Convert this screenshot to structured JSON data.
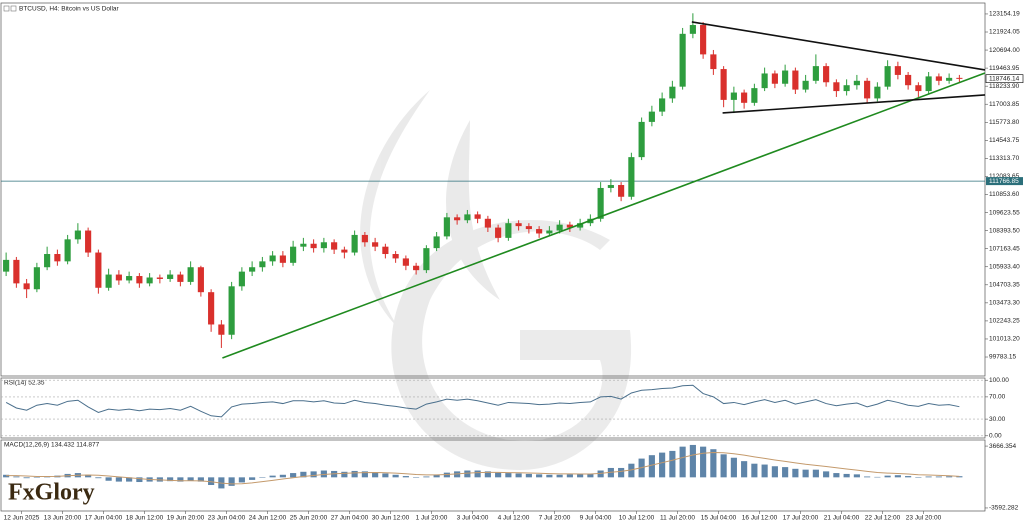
{
  "brand": "FxGlory",
  "chart_data": [
    {
      "type": "candlestick",
      "title": "BTCUSD, H4: Bitcoin vs US Dollar",
      "xlim": [
        0,
        96
      ],
      "ylim": [
        98490,
        123900
      ],
      "yticks": [
        123154.19,
        121924.05,
        {
          "value": 120694.0,
          "label": "120694.00"
        },
        119463.95,
        {
          "value": 118233.9,
          "label": "118233.90"
        },
        117003.85,
        {
          "value": 115773.8,
          "label": "115773.80"
        },
        114543.75,
        {
          "value": 113313.7,
          "label": "113313.70"
        },
        112083.65,
        {
          "value": 110853.6,
          "label": "110853.60"
        },
        109623.55,
        {
          "value": 108393.5,
          "label": "108393.50"
        },
        107163.45,
        {
          "value": 105933.4,
          "label": "105933.40"
        },
        104703.35,
        {
          "value": 103473.3,
          "label": "103473.30"
        },
        102243.25,
        {
          "value": 101013.2,
          "label": "101013.20"
        },
        99783.15
      ],
      "up_color": "#2e9d3e",
      "down_color": "#d9302c",
      "open": [
        105600,
        106400,
        104800,
        104400,
        105900,
        106800,
        106300,
        107800,
        108400,
        106900,
        104500,
        105400,
        105000,
        105300,
        104800,
        105200,
        105100,
        105400,
        104900,
        105900,
        104200,
        102000,
        101300,
        104600,
        105600,
        105900,
        106300,
        106700,
        106200,
        107300,
        107500,
        107200,
        107600,
        107100,
        106900,
        108100,
        107600,
        107300,
        106800,
        106500,
        106000,
        105700,
        107200,
        108000,
        109300,
        109100,
        109500,
        109200,
        108600,
        107900,
        108900,
        108700,
        108500,
        108200,
        108400,
        108800,
        108600,
        108900,
        109200,
        111300,
        111500,
        110700,
        113400,
        115800,
        116500,
        117400,
        118200,
        121800,
        122400,
        120400,
        119400,
        117300,
        117800,
        117100,
        118100,
        119100,
        118400,
        119300,
        118000,
        118600,
        119600,
        118500,
        117900,
        118300,
        118600,
        117400,
        118200,
        119600,
        119000,
        118300,
        117900,
        118900,
        118600,
        118800
      ],
      "high": [
        106900,
        106600,
        105100,
        106200,
        107300,
        107100,
        108100,
        108900,
        108600,
        107100,
        105800,
        105700,
        105600,
        105500,
        105500,
        105400,
        105700,
        105600,
        106300,
        106000,
        104400,
        102300,
        104900,
        105900,
        106300,
        106600,
        107000,
        107000,
        107700,
        107900,
        107800,
        107900,
        107800,
        107300,
        108400,
        108300,
        107900,
        107500,
        107000,
        106700,
        106200,
        107400,
        108300,
        109600,
        109500,
        109800,
        109700,
        109400,
        108800,
        109200,
        109100,
        108900,
        108700,
        108700,
        109100,
        109000,
        109200,
        109500,
        111700,
        111900,
        111700,
        113700,
        116100,
        116900,
        117800,
        118600,
        122200,
        123200,
        122600,
        120700,
        119600,
        118200,
        118000,
        118400,
        119500,
        119300,
        119700,
        119500,
        119000,
        120400,
        119800,
        118700,
        118700,
        119000,
        118800,
        118500,
        120000,
        119900,
        119200,
        118500,
        119200,
        119100,
        119100,
        119000
      ],
      "low": [
        105300,
        104500,
        103800,
        104200,
        105700,
        106000,
        106100,
        107500,
        106600,
        104100,
        104300,
        104700,
        104800,
        104500,
        104600,
        104800,
        104900,
        104600,
        104700,
        103900,
        101500,
        100400,
        101000,
        104300,
        105300,
        105600,
        106000,
        105900,
        106000,
        107000,
        106900,
        106900,
        106800,
        106500,
        106700,
        107300,
        107000,
        106500,
        106200,
        105700,
        105400,
        105500,
        107000,
        107800,
        108800,
        108900,
        108900,
        108300,
        107600,
        107700,
        108400,
        108200,
        107900,
        108000,
        108200,
        108300,
        108400,
        108700,
        109000,
        111000,
        110400,
        110500,
        113200,
        115500,
        116200,
        117100,
        118000,
        121500,
        120100,
        119000,
        116800,
        116400,
        116700,
        116900,
        117900,
        118100,
        118200,
        117700,
        117800,
        118400,
        118200,
        117500,
        117600,
        118000,
        117100,
        117200,
        118000,
        118700,
        118000,
        117500,
        117700,
        118300,
        118400,
        118500
      ],
      "close": [
        106400,
        104800,
        104400,
        105900,
        106800,
        106300,
        107800,
        108400,
        106900,
        104500,
        105400,
        105000,
        105300,
        104800,
        105200,
        105100,
        105400,
        104900,
        105900,
        104200,
        102000,
        101300,
        104600,
        105600,
        105900,
        106300,
        106700,
        106200,
        107300,
        107500,
        107200,
        107600,
        107100,
        106900,
        108100,
        107600,
        107300,
        106800,
        106500,
        106000,
        105700,
        107200,
        108000,
        109300,
        109100,
        109500,
        109200,
        108600,
        107900,
        108900,
        108700,
        108500,
        108200,
        108400,
        108800,
        108600,
        108900,
        109200,
        111300,
        111500,
        110700,
        113400,
        115800,
        116500,
        117400,
        118200,
        121800,
        122400,
        120400,
        119400,
        117300,
        117800,
        117100,
        118100,
        119100,
        118400,
        119300,
        118000,
        118600,
        119600,
        118500,
        117900,
        118300,
        118600,
        117400,
        118200,
        119600,
        119000,
        118300,
        117900,
        118900,
        118600,
        118800,
        118746.14
      ],
      "hline": {
        "value": 111766.85,
        "color": "#2b6f7a"
      },
      "lines": [
        {
          "color": "#1f8a1f",
          "x": [
            21.6,
            96
          ],
          "y": [
            99720,
            119135
          ]
        },
        {
          "color": "#111111",
          "x": [
            67.4,
            96
          ],
          "y": [
            122609,
            119339
          ]
        },
        {
          "color": "#111111",
          "x": [
            70.4,
            96
          ],
          "y": [
            116410,
            117636
          ]
        }
      ]
    },
    {
      "type": "line",
      "title": "RSI(14) 52.35",
      "color": "#4a6f8c",
      "xlim": [
        0,
        96
      ],
      "ylim": [
        -4,
        104
      ],
      "yticks": [
        {
          "value": 100,
          "label": "100.00"
        },
        {
          "value": 70,
          "label": "70.00"
        },
        {
          "value": 30,
          "label": "30.00"
        },
        {
          "value": 0,
          "label": "0.00"
        }
      ],
      "values": [
        60,
        50,
        46,
        55,
        58,
        55,
        62,
        64,
        52,
        42,
        48,
        46,
        48,
        45,
        48,
        47,
        49,
        46,
        53,
        44,
        36,
        34,
        52,
        57,
        58,
        60,
        61,
        58,
        63,
        63,
        61,
        63,
        59,
        58,
        64,
        60,
        58,
        55,
        53,
        50,
        48,
        57,
        61,
        66,
        64,
        66,
        63,
        59,
        55,
        60,
        59,
        58,
        56,
        57,
        59,
        58,
        60,
        61,
        70,
        71,
        66,
        77,
        82,
        83,
        85,
        86,
        90,
        91,
        76,
        70,
        58,
        60,
        56,
        61,
        65,
        60,
        64,
        57,
        61,
        65,
        58,
        54,
        57,
        59,
        52,
        57,
        64,
        60,
        55,
        53,
        58,
        55,
        56,
        52.35
      ]
    },
    {
      "type": "macd",
      "title": "MACD(12,26,9) 134.432 114.877",
      "xlim": [
        0,
        96
      ],
      "ylim": [
        -3949,
        4380
      ],
      "yticks": [
        3666.354,
        -3592.282
      ],
      "xticks": [
        {
          "value": 2,
          "label": "12 Jun 2025"
        },
        {
          "value": 6,
          "label": "13 Jun 20:00"
        },
        {
          "value": 10,
          "label": "17 Jun 04:00"
        },
        {
          "value": 14,
          "label": "18 Jun 12:00"
        },
        {
          "value": 18,
          "label": "19 Jun 20:00"
        },
        {
          "value": 22,
          "label": "23 Jun 04:00"
        },
        {
          "value": 26,
          "label": "24 Jun 12:00"
        },
        {
          "value": 30,
          "label": "25 Jun 20:00"
        },
        {
          "value": 34,
          "label": "27 Jun 04:00"
        },
        {
          "value": 38,
          "label": "30 Jun 12:00"
        },
        {
          "value": 42,
          "label": "1 Jul 20:00"
        },
        {
          "value": 46,
          "label": "3 Jul 04:00"
        },
        {
          "value": 50,
          "label": "4 Jul 12:00"
        },
        {
          "value": 54,
          "label": "7 Jul 20:00"
        },
        {
          "value": 58,
          "label": "9 Jul 04:00"
        },
        {
          "value": 62,
          "label": "10 Jul 12:00"
        },
        {
          "value": 66,
          "label": "11 Jul 20:00"
        },
        {
          "value": 70,
          "label": "15 Jul 04:00"
        },
        {
          "value": 74,
          "label": "16 Jul 12:00"
        },
        {
          "value": 78,
          "label": "17 Jul 20:00"
        },
        {
          "value": 82,
          "label": "21 Jul 04:00"
        },
        {
          "value": 86,
          "label": "22 Jul 12:00"
        },
        {
          "value": 90,
          "label": "23 Jul 20:00"
        }
      ],
      "series": [
        {
          "type": "bar",
          "color": "#5e84a8",
          "values": [
            300,
            100,
            -100,
            -50,
            100,
            200,
            400,
            500,
            300,
            -100,
            -400,
            -500,
            -500,
            -550,
            -500,
            -500,
            -450,
            -500,
            -400,
            -500,
            -900,
            -1300,
            -1000,
            -600,
            -300,
            0,
            200,
            300,
            500,
            650,
            700,
            800,
            750,
            650,
            750,
            700,
            600,
            450,
            300,
            150,
            0,
            100,
            300,
            550,
            700,
            800,
            800,
            700,
            550,
            500,
            450,
            400,
            350,
            300,
            300,
            350,
            350,
            400,
            800,
            1100,
            1100,
            1600,
            2200,
            2600,
            2900,
            3100,
            3600,
            3800,
            3600,
            3300,
            2700,
            2300,
            1900,
            1600,
            1500,
            1300,
            1200,
            1000,
            900,
            900,
            700,
            500,
            400,
            350,
            100,
            50,
            200,
            250,
            150,
            0,
            100,
            100,
            120,
            134.432
          ]
        },
        {
          "type": "line",
          "color": "#c49a6c",
          "values": [
            200,
            200,
            150,
            100,
            100,
            120,
            180,
            250,
            280,
            250,
            150,
            50,
            -50,
            -150,
            -250,
            -300,
            -350,
            -400,
            -400,
            -420,
            -520,
            -680,
            -760,
            -750,
            -650,
            -500,
            -350,
            -200,
            -50,
            100,
            220,
            340,
            420,
            470,
            520,
            560,
            570,
            540,
            490,
            420,
            340,
            290,
            290,
            340,
            410,
            490,
            550,
            580,
            580,
            560,
            540,
            510,
            480,
            440,
            410,
            400,
            390,
            390,
            470,
            600,
            700,
            880,
            1140,
            1430,
            1720,
            2000,
            2320,
            2620,
            2820,
            2920,
            2880,
            2770,
            2600,
            2400,
            2220,
            2040,
            1870,
            1700,
            1540,
            1410,
            1270,
            1120,
            980,
            850,
            700,
            570,
            500,
            450,
            390,
            310,
            270,
            230,
            180,
            114.877
          ]
        }
      ]
    }
  ]
}
